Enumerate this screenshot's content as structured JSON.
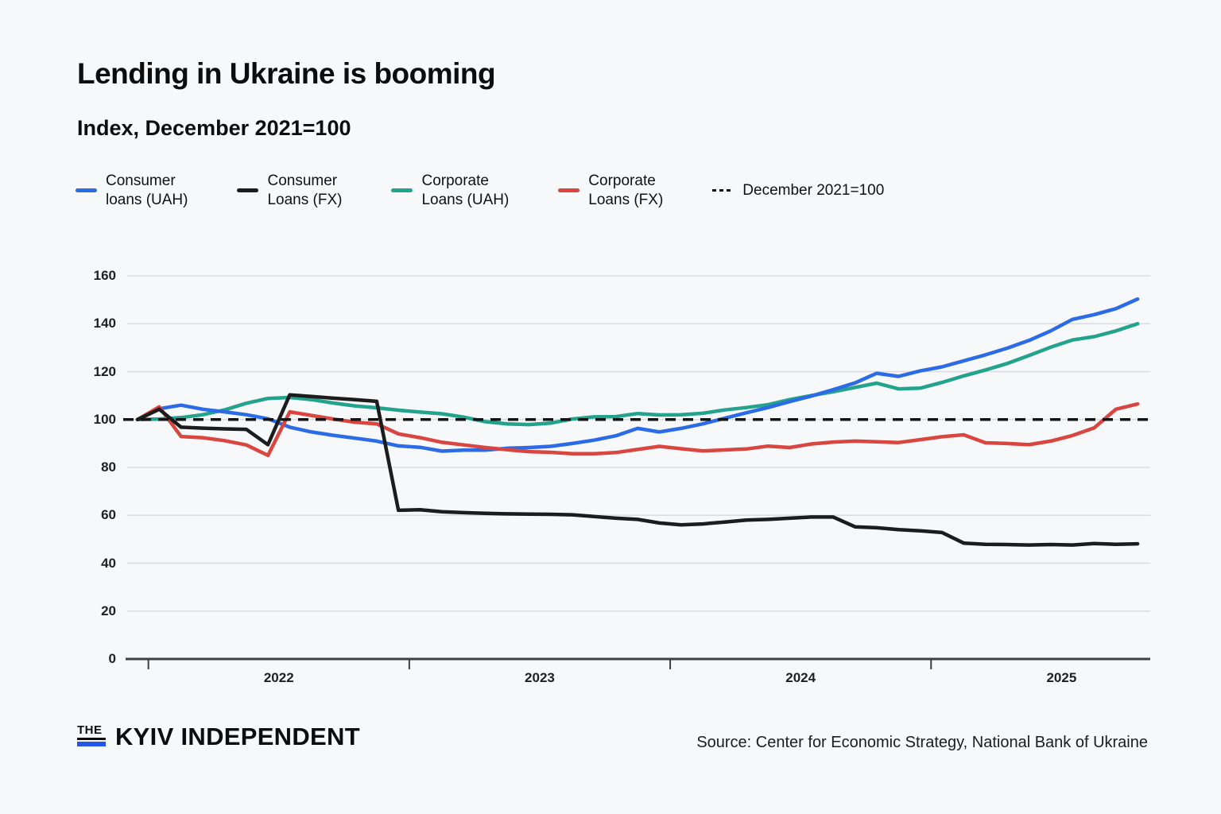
{
  "header": {
    "title": "Lending in Ukraine is booming",
    "subtitle": "Index, December 2021=100"
  },
  "legend": {
    "items": [
      {
        "label_line1": "Consumer",
        "label_line2": "loans (UAH)",
        "color": "#2b6be6",
        "dash": false
      },
      {
        "label_line1": "Consumer",
        "label_line2": "Loans (FX)",
        "color": "#1c1c1c",
        "dash": false
      },
      {
        "label_line1": "Corporate",
        "label_line2": "Loans (UAH)",
        "color": "#23a28d",
        "dash": false
      },
      {
        "label_line1": "Corporate",
        "label_line2": "Loans (FX)",
        "color": "#d9453f",
        "dash": false
      },
      {
        "label_line1": "December 2021=100",
        "label_line2": "",
        "color": "#141414",
        "dash": true
      }
    ]
  },
  "chart_data": {
    "type": "line",
    "title": "Lending in Ukraine is booming",
    "ylabel": "Index, December 2021=100",
    "x_start": "2021-12",
    "x_end": "2025-10",
    "frequency": "monthly",
    "ylim": [
      0,
      160
    ],
    "yticks": [
      0,
      20,
      40,
      60,
      80,
      100,
      120,
      140,
      160
    ],
    "xticks": [
      "2022",
      "2023",
      "2024",
      "2025"
    ],
    "grid": "horizontal",
    "legend_position": "top",
    "baseline": {
      "label": "December 2021=100",
      "value": 100,
      "style": "dashed",
      "color": "#141414"
    },
    "series": [
      {
        "name": "Corporate Loans (UAH)",
        "color": "#23a28d",
        "values": [
          100,
          100.2,
          100.8,
          102,
          104,
          106.8,
          108.8,
          109.2,
          108.3,
          106.9,
          105.7,
          104.9,
          103.9,
          103.1,
          102.4,
          101,
          99.1,
          98.2,
          97.9,
          98.5,
          100.2,
          101.1,
          101.2,
          102.5,
          101.9,
          102,
          102.6,
          104,
          105,
          106.2,
          108.3,
          110,
          111.6,
          113.4,
          115.2,
          112.8,
          113.1,
          115.5,
          118.2,
          120.7,
          123.4,
          126.7,
          130.2,
          133.2,
          134.6,
          137,
          140
        ]
      },
      {
        "name": "Consumer loans (UAH)",
        "color": "#2b6be6",
        "values": [
          100,
          104.5,
          106,
          104.3,
          103.2,
          102,
          100.3,
          96.8,
          94.8,
          93.4,
          92.2,
          91,
          89,
          88.4,
          86.8,
          87.2,
          87.2,
          88,
          88.3,
          88.8,
          90,
          91.4,
          93.2,
          96.3,
          94.8,
          96.3,
          98.2,
          100.5,
          102.8,
          105,
          107.5,
          109.8,
          112.5,
          115.3,
          119.3,
          118,
          120.3,
          122,
          124.5,
          127,
          129.8,
          133,
          137,
          141.8,
          143.8,
          146.3,
          150.3
        ]
      },
      {
        "name": "Corporate Loans (FX)",
        "color": "#d9453f",
        "values": [
          100,
          105.3,
          92.9,
          92.4,
          91.2,
          89.4,
          85,
          103.2,
          101.7,
          100.2,
          98.9,
          98.2,
          94,
          92.4,
          90.5,
          89.4,
          88.3,
          87.4,
          86.6,
          86.3,
          85.7,
          85.7,
          86.2,
          87.5,
          88.8,
          87.8,
          86.9,
          87.3,
          87.7,
          88.9,
          88.3,
          89.8,
          90.6,
          91,
          90.7,
          90.4,
          91.6,
          92.8,
          93.6,
          90.3,
          90,
          89.5,
          91,
          93.3,
          96.5,
          104.3,
          106.5
        ]
      },
      {
        "name": "Consumer Loans (FX)",
        "color": "#1c1c1c",
        "values": [
          100,
          104.3,
          96.8,
          96.4,
          96.1,
          95.9,
          89.5,
          110.3,
          109.6,
          108.9,
          108.3,
          107.6,
          62.1,
          62.3,
          61.5,
          61.1,
          60.8,
          60.6,
          60.5,
          60.4,
          60.2,
          59.5,
          58.8,
          58.3,
          56.8,
          56,
          56.4,
          57.2,
          58,
          58.3,
          58.8,
          59.3,
          59.3,
          55.2,
          54.8,
          54,
          53.5,
          52.8,
          48.4,
          47.9,
          47.8,
          47.6,
          47.8,
          47.6,
          48.2,
          47.9,
          48.1
        ]
      }
    ]
  },
  "footer": {
    "logo_the": "THE",
    "logo_name": "KYIV INDEPENDENT",
    "source": "Source: Center for Economic Strategy, National Bank of Ukraine"
  }
}
